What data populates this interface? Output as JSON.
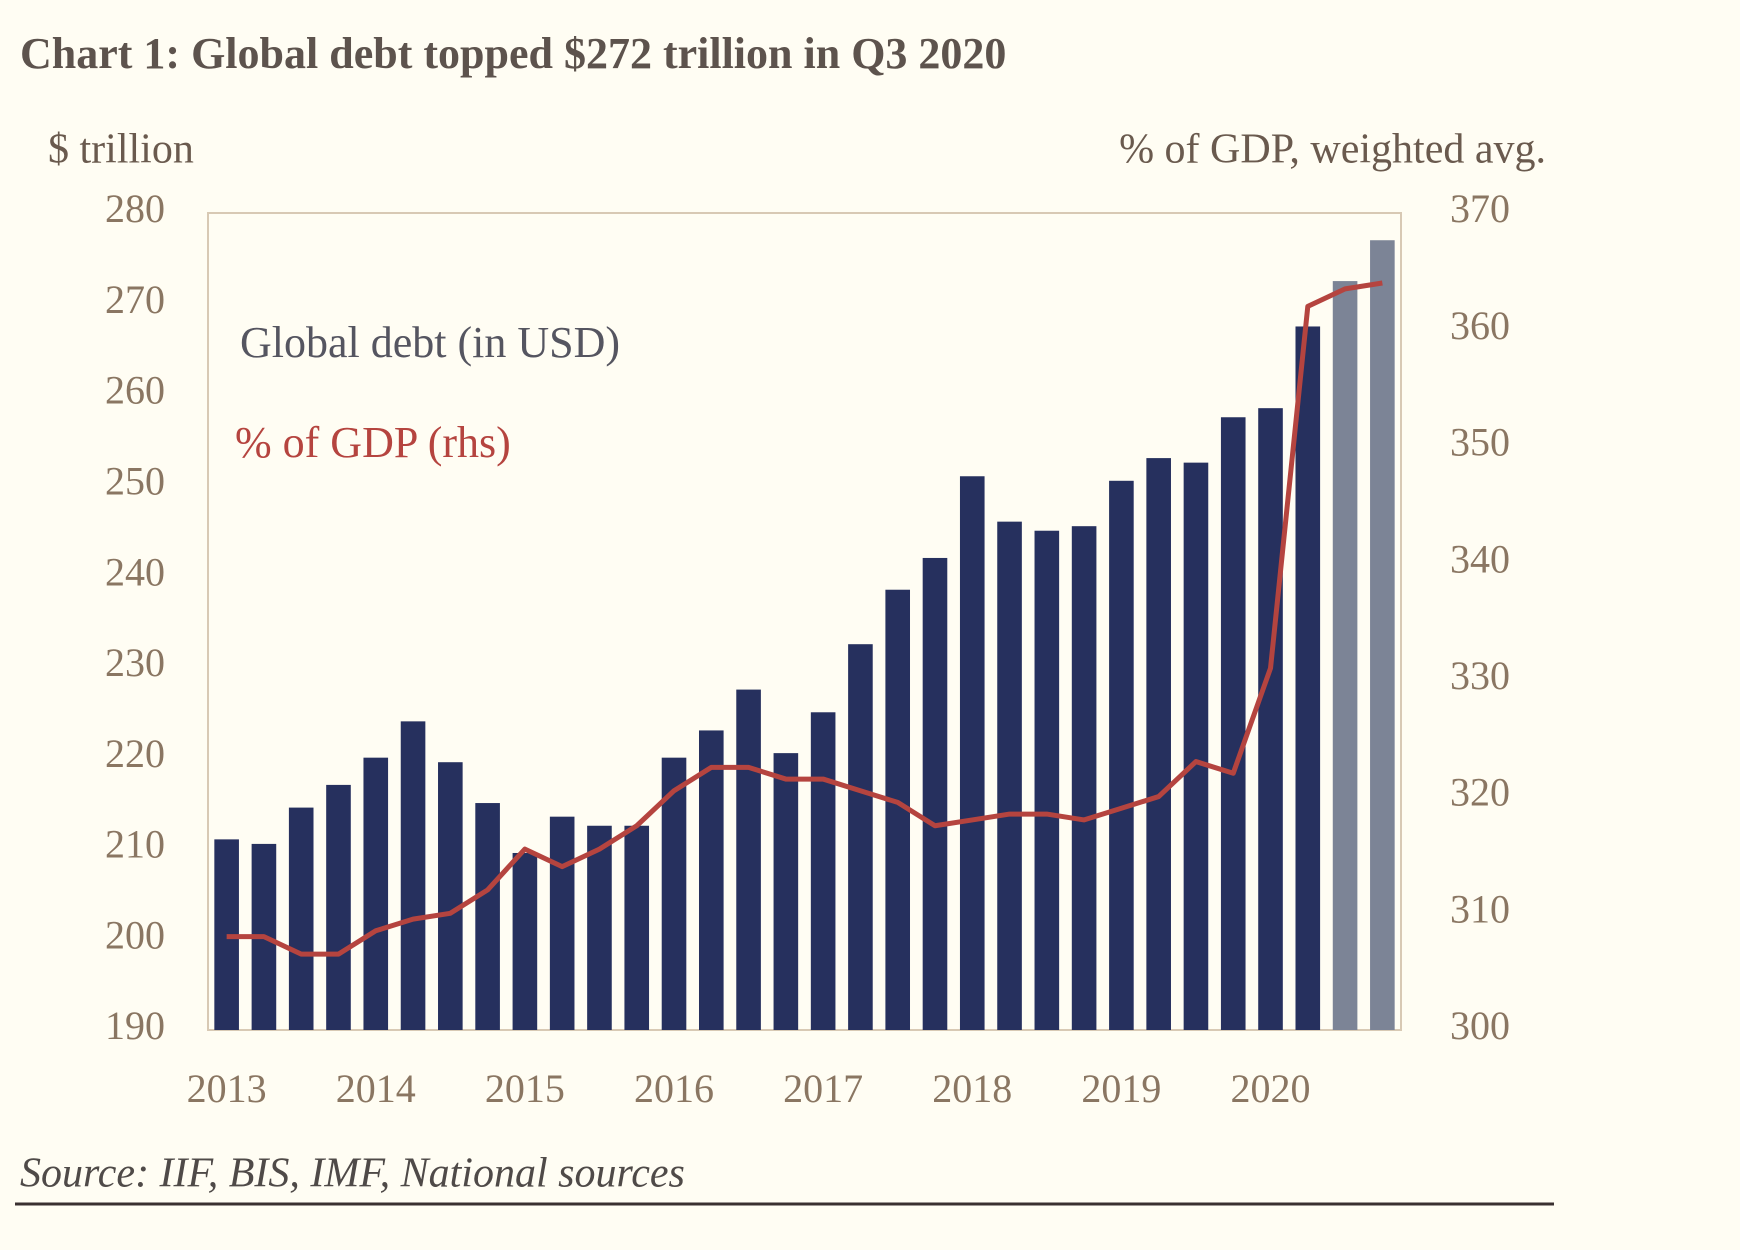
{
  "chart_data": {
    "type": "bar",
    "title": "Chart 1: Global debt topped $272 trillion in Q3 2020",
    "y_label": "$ trillion",
    "y2_label": "% of GDP, weighted avg.",
    "source": "Source: IIF, BIS, IMF, National sources",
    "categories": [
      "2013",
      null,
      null,
      null,
      "2014",
      null,
      null,
      null,
      "2015",
      null,
      null,
      null,
      "2016",
      null,
      null,
      null,
      "2017",
      null,
      null,
      null,
      "2018",
      null,
      null,
      null,
      "2019",
      null,
      null,
      null,
      "2020",
      null,
      null,
      null
    ],
    "series": [
      {
        "name": "Global debt (in USD)",
        "type": "bar",
        "color": "#26305e",
        "colors": [
          "#26305e",
          "#26305e",
          "#26305e",
          "#26305e",
          "#26305e",
          "#26305e",
          "#26305e",
          "#26305e",
          "#26305e",
          "#26305e",
          "#26305e",
          "#26305e",
          "#26305e",
          "#26305e",
          "#26305e",
          "#26305e",
          "#26305e",
          "#26305e",
          "#26305e",
          "#26305e",
          "#26305e",
          "#26305e",
          "#26305e",
          "#26305e",
          "#26305e",
          "#26305e",
          "#26305e",
          "#26305e",
          "#26305e",
          "#26305e",
          "#7c8496",
          "#7c8496"
        ],
        "values": [
          211,
          210.5,
          214.5,
          217,
          220,
          224,
          219.5,
          215,
          209.5,
          213.5,
          212.5,
          212.5,
          220,
          223,
          227.5,
          220.5,
          225,
          232.5,
          238.5,
          242,
          251,
          246,
          245,
          245.5,
          250.5,
          253,
          252.5,
          257.5,
          258.5,
          267.5,
          272.5,
          277
        ]
      },
      {
        "name": "% of GDP (rhs)",
        "type": "line",
        "axis": "y2",
        "color": "#b5443f",
        "values": [
          308,
          308,
          306.5,
          306.5,
          308.5,
          309.5,
          310,
          312,
          315.5,
          314,
          315.5,
          317.5,
          320.5,
          322.5,
          322.5,
          321.5,
          321.5,
          320.5,
          319.5,
          317.5,
          318,
          318.5,
          318.5,
          318,
          319,
          320,
          323,
          322,
          331,
          362,
          363.5,
          364
        ]
      }
    ],
    "ylim": [
      190,
      280
    ],
    "yticks": [
      190,
      200,
      210,
      220,
      230,
      240,
      250,
      260,
      270,
      280
    ],
    "y2lim": [
      300,
      370
    ],
    "y2ticks": [
      300,
      310,
      320,
      330,
      340,
      350,
      360,
      370
    ]
  }
}
